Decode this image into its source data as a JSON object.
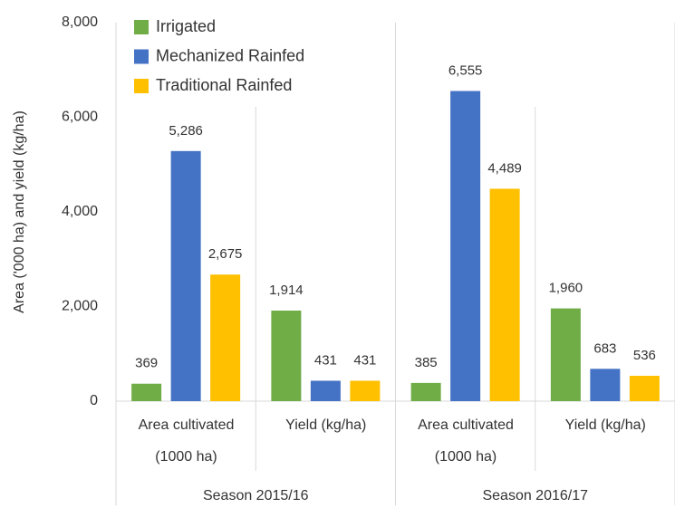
{
  "chart_data": {
    "type": "bar",
    "y_label": "Area ('000 ha) and yield (kg/ha)",
    "categories": [
      "Area cultivated\n(1000 ha)",
      "Yield (kg/ha)",
      "Area cultivated\n(1000 ha)",
      "Yield (kg/ha)"
    ],
    "groups": [
      "Season 2015/16",
      "Season 2016/17"
    ],
    "series": [
      {
        "name": "Irrigated",
        "color": "#70ad47",
        "values": [
          369,
          1914,
          385,
          1960
        ],
        "value_labels": [
          "369",
          "1,914",
          "385",
          "1,960"
        ]
      },
      {
        "name": "Mechanized Rainfed",
        "color": "#4472c4",
        "values": [
          5286,
          431,
          6555,
          683
        ],
        "value_labels": [
          "5,286",
          "431",
          "6,555",
          "683"
        ]
      },
      {
        "name": "Traditional Rainfed",
        "color": "#ffc000",
        "values": [
          2675,
          431,
          4489,
          536
        ],
        "value_labels": [
          "2,675",
          "431",
          "4,489",
          "536"
        ]
      }
    ],
    "ylim": [
      0,
      8000
    ],
    "yticks": [
      0,
      {
        "value": 2000,
        "label": "2,000"
      },
      {
        "value": 4000,
        "label": "4,000"
      },
      {
        "value": 6000,
        "label": "6,000"
      },
      {
        "value": 8000,
        "label": "8,000"
      }
    ],
    "legend": "top-left"
  }
}
